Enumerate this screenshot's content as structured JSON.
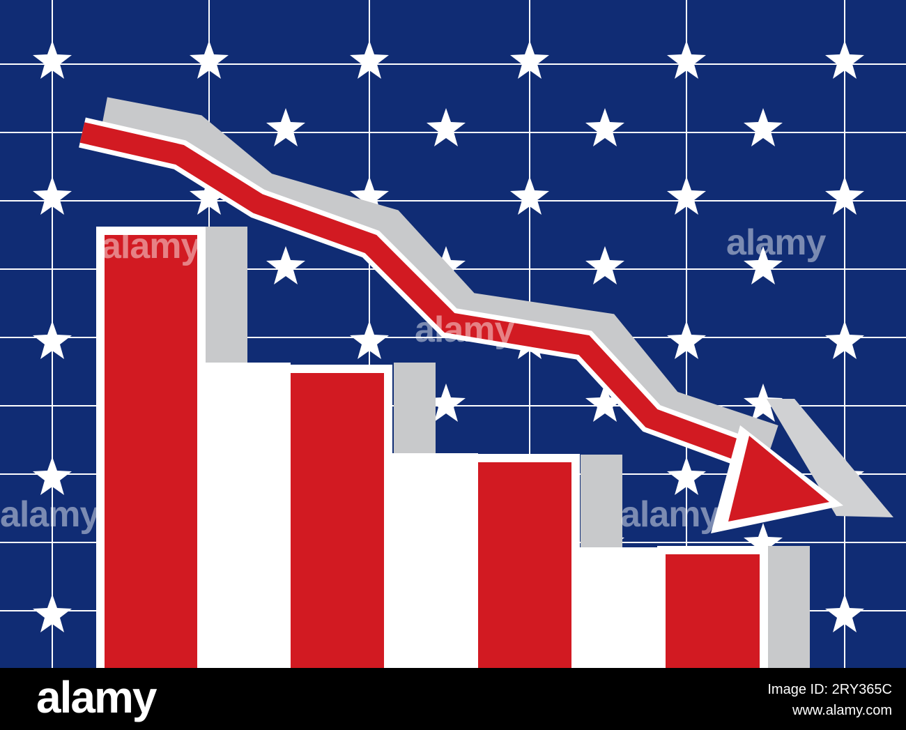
{
  "watermarks": [
    "alamy",
    "alamy",
    "alamy",
    "alamy",
    "alamy"
  ],
  "footer": {
    "logo": "alamy",
    "image_id": "Image ID: 2RY365C",
    "url": "www.alamy.com"
  }
}
